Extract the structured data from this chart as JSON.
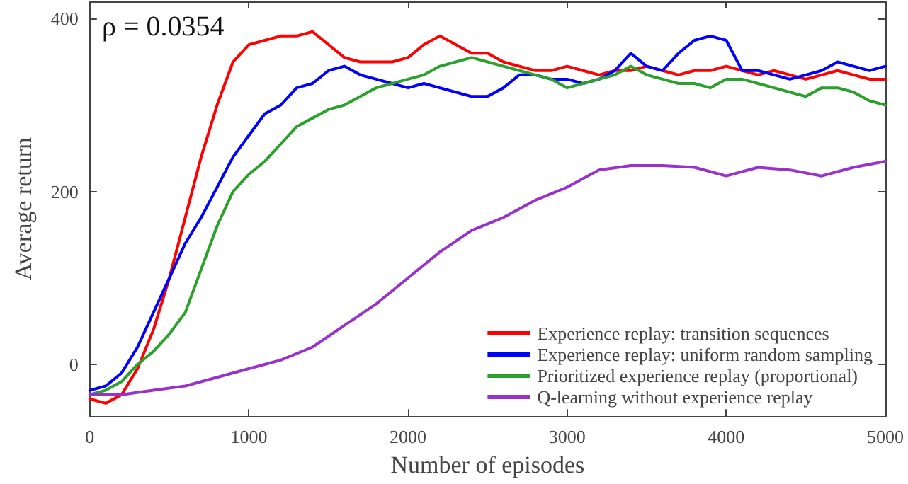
{
  "chart_data": {
    "type": "line",
    "xlabel": "Number of episodes",
    "ylabel": "Average return",
    "annotations": [
      "ρ = 0.0354"
    ],
    "xlim": [
      0,
      5000
    ],
    "xticks": [
      0,
      1000,
      2000,
      3000,
      4000,
      5000
    ],
    "ylim": [
      -60,
      420
    ],
    "yticks": [
      0,
      200,
      400
    ],
    "grid": false,
    "legend": "bottom right",
    "marker": "none",
    "line_style": "solid",
    "x": [
      0,
      100,
      200,
      300,
      400,
      500,
      600,
      700,
      800,
      900,
      1000,
      1100,
      1200,
      1300,
      1400,
      1500,
      1600,
      1700,
      1800,
      1900,
      2000,
      2100,
      2200,
      2300,
      2400,
      2500,
      2600,
      2700,
      2800,
      2900,
      3000,
      3100,
      3200,
      3300,
      3400,
      3500,
      3600,
      3700,
      3800,
      3900,
      4000,
      4100,
      4200,
      4300,
      4400,
      4500,
      4600,
      4700,
      4800,
      4900,
      5000
    ],
    "series": [
      {
        "name": "Experience replay: transition sequences",
        "color": "#ff0000",
        "values": [
          -40,
          -45,
          -35,
          -5,
          40,
          100,
          170,
          240,
          300,
          350,
          370,
          375,
          380,
          380,
          385,
          370,
          355,
          350,
          350,
          350,
          355,
          370,
          380,
          370,
          360,
          360,
          350,
          345,
          340,
          340,
          345,
          340,
          335,
          340,
          340,
          345,
          340,
          335,
          340,
          340,
          345,
          340,
          335,
          340,
          335,
          330,
          335,
          340,
          335,
          330,
          330
        ]
      },
      {
        "name": "Experience replay: uniform random sampling",
        "color": "#0000ff",
        "values": [
          -30,
          -25,
          -10,
          20,
          60,
          100,
          140,
          170,
          205,
          240,
          265,
          290,
          300,
          320,
          325,
          340,
          345,
          335,
          330,
          325,
          320,
          325,
          320,
          315,
          310,
          310,
          320,
          335,
          335,
          330,
          330,
          325,
          330,
          340,
          360,
          345,
          340,
          360,
          375,
          380,
          375,
          340,
          340,
          335,
          330,
          335,
          340,
          350,
          345,
          340,
          345
        ]
      },
      {
        "name": "Prioritized experience replay (proportional)",
        "color": "#2ca02c",
        "values": [
          -35,
          -30,
          -20,
          0,
          15,
          35,
          60,
          110,
          160,
          200,
          220,
          235,
          255,
          275,
          285,
          295,
          300,
          310,
          320,
          325,
          330,
          335,
          345,
          350,
          355,
          350,
          345,
          340,
          335,
          330,
          320,
          325,
          330,
          335,
          345,
          335,
          330,
          325,
          325,
          320,
          330,
          330,
          325,
          320,
          315,
          310,
          320,
          320,
          315,
          305,
          300
        ]
      },
      {
        "name": "Q-learning without experience replay",
        "color": "#9932cc",
        "x": [
          0,
          200,
          400,
          600,
          800,
          1000,
          1200,
          1400,
          1600,
          1800,
          2000,
          2200,
          2400,
          2600,
          2800,
          3000,
          3200,
          3400,
          3600,
          3800,
          4000,
          4200,
          4400,
          4600,
          4800,
          5000
        ],
        "values": [
          -35,
          -35,
          -30,
          -25,
          -15,
          -5,
          5,
          20,
          45,
          70,
          100,
          130,
          155,
          170,
          190,
          205,
          225,
          230,
          230,
          228,
          218,
          228,
          225,
          218,
          228,
          235
        ]
      }
    ]
  }
}
